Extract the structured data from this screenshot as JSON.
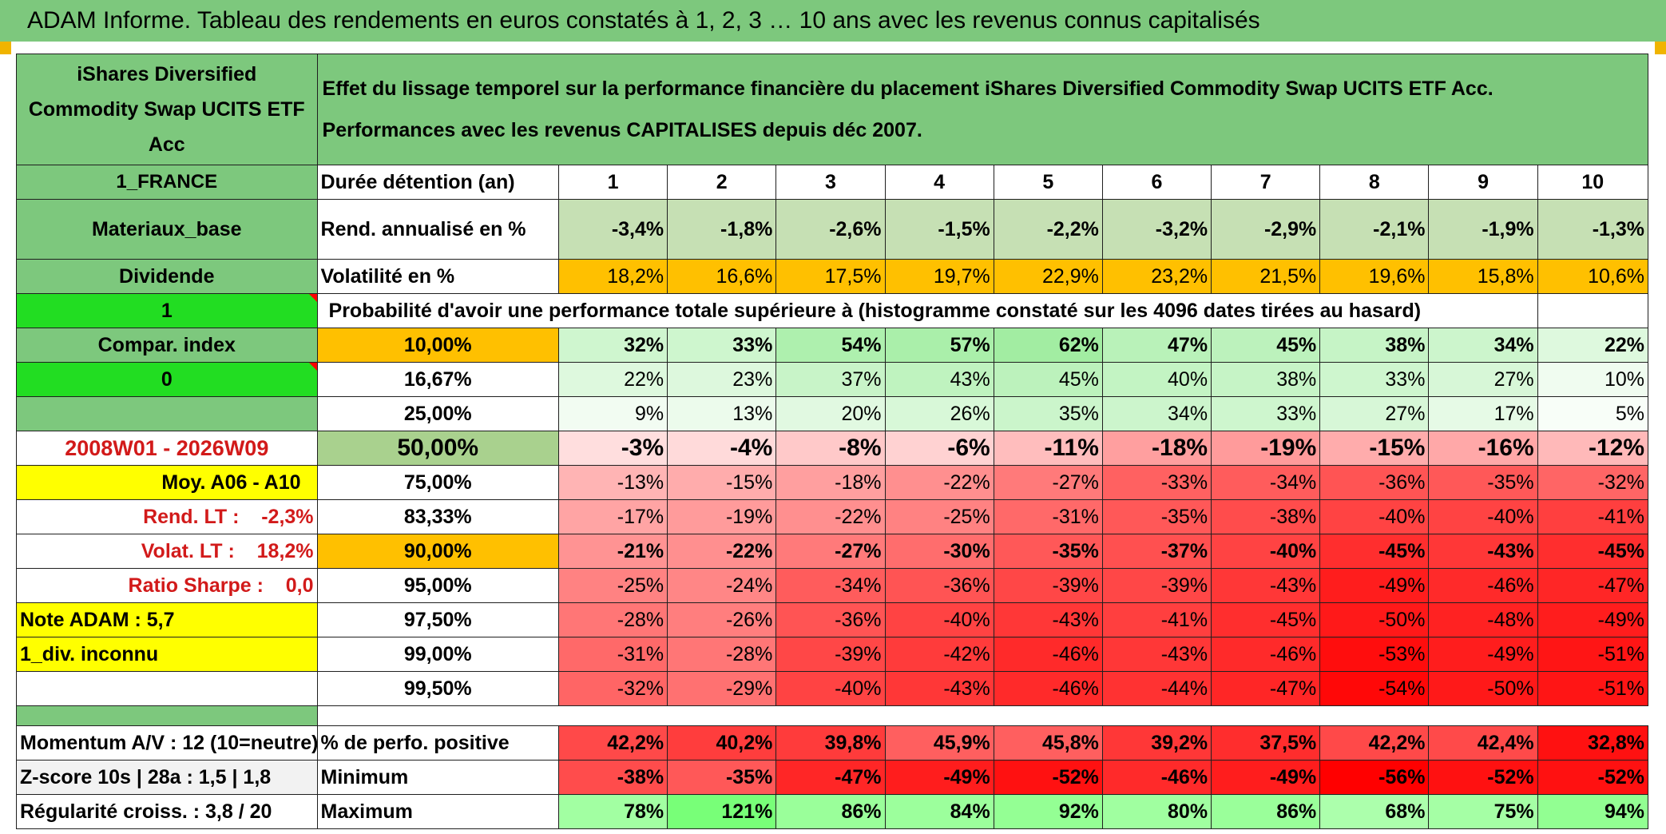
{
  "title": "ADAM Informe. Tableau des rendements en euros constatés à 1, 2, 3 … 10 ans avec les revenus connus capitalisés",
  "header": {
    "fund_name": "iShares Diversified Commodity Swap UCITS ETF Acc",
    "description_line1": "Effet du lissage temporel sur la performance financière du placement iShares Diversified Commodity Swap UCITS ETF Acc.",
    "description_line2": "Performances avec les revenus CAPITALISES depuis déc 2007."
  },
  "left_panel": {
    "country": "1_FRANCE",
    "sector": "Materiaux_base",
    "dividend_label": "Dividende",
    "dividend_value": "1",
    "compar_label": "Compar. index",
    "compar_value": "0",
    "period": "2008W01 - 2026W09",
    "moy": "Moy. A06 - A10",
    "rend_lt": "Rend. LT :    -2,3%",
    "volat_lt": "Volat. LT :    18,2%",
    "sharpe": "Ratio Sharpe :    0,0",
    "note": "Note ADAM : 5,7",
    "div_status": "1_div. inconnu",
    "momentum": "Momentum A/V : 12 (10=neutre)",
    "zscore": "Z-score 10s | 28a : 1,5 | 1,8",
    "regularite": "Régularité croiss. : 3,8 / 20"
  },
  "labels": {
    "duration": "Durée détention (an)",
    "rend": "Rend. annualisé en %",
    "vol": "Volatilité en %",
    "prob_title": "Probabilité d'avoir une performance totale supérieure à (histogramme constaté sur les 4096 dates tirées au hasard)",
    "pct_positive": "% de perfo. positive",
    "minimum": "Minimum",
    "maximum": "Maximum"
  },
  "years": [
    "1",
    "2",
    "3",
    "4",
    "5",
    "6",
    "7",
    "8",
    "9",
    "10"
  ],
  "rend": [
    "-3,4%",
    "-1,8%",
    "-2,6%",
    "-1,5%",
    "-2,2%",
    "-3,2%",
    "-2,9%",
    "-2,1%",
    "-1,9%",
    "-1,3%"
  ],
  "vol": [
    "18,2%",
    "16,6%",
    "17,5%",
    "19,7%",
    "22,9%",
    "23,2%",
    "21,5%",
    "19,6%",
    "15,8%",
    "10,6%"
  ],
  "prob_rows": [
    {
      "threshold": "10,00%",
      "values": [
        "32%",
        "33%",
        "54%",
        "57%",
        "62%",
        "47%",
        "45%",
        "38%",
        "34%",
        "22%"
      ]
    },
    {
      "threshold": "16,67%",
      "values": [
        "22%",
        "23%",
        "37%",
        "43%",
        "45%",
        "40%",
        "38%",
        "33%",
        "27%",
        "10%"
      ]
    },
    {
      "threshold": "25,00%",
      "values": [
        "9%",
        "13%",
        "20%",
        "26%",
        "35%",
        "34%",
        "33%",
        "27%",
        "17%",
        "5%"
      ]
    },
    {
      "threshold": "50,00%",
      "values": [
        "-3%",
        "-4%",
        "-8%",
        "-6%",
        "-11%",
        "-18%",
        "-19%",
        "-15%",
        "-16%",
        "-12%"
      ]
    },
    {
      "threshold": "75,00%",
      "values": [
        "-13%",
        "-15%",
        "-18%",
        "-22%",
        "-27%",
        "-33%",
        "-34%",
        "-36%",
        "-35%",
        "-32%"
      ]
    },
    {
      "threshold": "83,33%",
      "values": [
        "-17%",
        "-19%",
        "-22%",
        "-25%",
        "-31%",
        "-35%",
        "-38%",
        "-40%",
        "-40%",
        "-41%"
      ]
    },
    {
      "threshold": "90,00%",
      "values": [
        "-21%",
        "-22%",
        "-27%",
        "-30%",
        "-35%",
        "-37%",
        "-40%",
        "-45%",
        "-43%",
        "-45%"
      ]
    },
    {
      "threshold": "95,00%",
      "values": [
        "-25%",
        "-24%",
        "-34%",
        "-36%",
        "-39%",
        "-39%",
        "-43%",
        "-49%",
        "-46%",
        "-47%"
      ]
    },
    {
      "threshold": "97,50%",
      "values": [
        "-28%",
        "-26%",
        "-36%",
        "-40%",
        "-43%",
        "-41%",
        "-45%",
        "-50%",
        "-48%",
        "-49%"
      ]
    },
    {
      "threshold": "99,00%",
      "values": [
        "-31%",
        "-28%",
        "-39%",
        "-42%",
        "-46%",
        "-43%",
        "-46%",
        "-53%",
        "-49%",
        "-51%"
      ]
    },
    {
      "threshold": "99,50%",
      "values": [
        "-32%",
        "-29%",
        "-40%",
        "-43%",
        "-46%",
        "-44%",
        "-47%",
        "-54%",
        "-50%",
        "-51%"
      ]
    }
  ],
  "pct_positive": [
    "42,2%",
    "40,2%",
    "39,8%",
    "45,9%",
    "45,8%",
    "39,2%",
    "37,5%",
    "42,2%",
    "42,4%",
    "32,8%"
  ],
  "minimum": [
    "-38%",
    "-35%",
    "-47%",
    "-49%",
    "-52%",
    "-46%",
    "-49%",
    "-56%",
    "-52%",
    "-52%"
  ],
  "maximum": [
    "78%",
    "121%",
    "86%",
    "84%",
    "92%",
    "80%",
    "86%",
    "68%",
    "75%",
    "94%"
  ],
  "colors": {
    "header_green": "#7dc87d",
    "orange": "#ffc000",
    "bright_green": "#22dd22",
    "yellow": "#ffff00",
    "red_text": "#d21a1a"
  }
}
